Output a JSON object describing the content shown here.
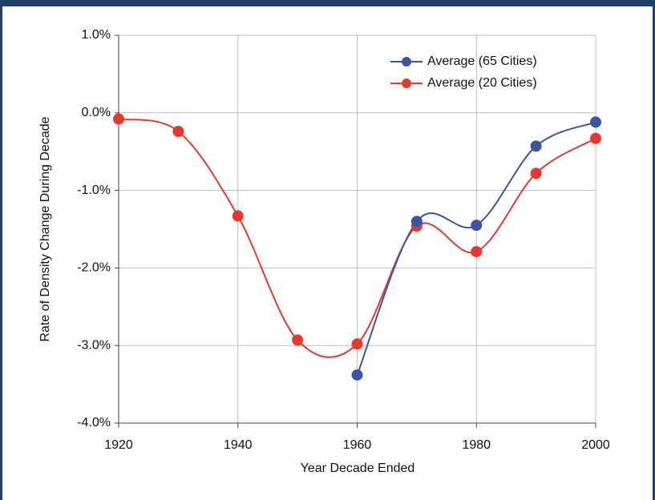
{
  "chart_data": {
    "type": "line",
    "x": [
      1920,
      1930,
      1940,
      1950,
      1960,
      1970,
      1980,
      1990,
      2000
    ],
    "series": [
      {
        "name": "Average (65 Cities)",
        "color": "#3a55a4",
        "values": [
          null,
          null,
          null,
          null,
          -3.38,
          -1.4,
          -1.45,
          -0.43,
          -0.12
        ]
      },
      {
        "name": "Average (20 Cities)",
        "color": "#e8382b",
        "values": [
          -0.08,
          -0.24,
          -1.33,
          -2.93,
          -2.98,
          -1.46,
          -1.79,
          -0.78,
          -0.33
        ]
      }
    ],
    "xlabel": "Year Decade Ended",
    "ylabel": "Rate of Density Change During Decade",
    "xlim": [
      1920,
      2000
    ],
    "xticks": [
      1920,
      1940,
      1960,
      1980,
      2000
    ],
    "ylim": [
      -4,
      1
    ],
    "yticks": [
      {
        "value": -4,
        "label": "-4.0%"
      },
      {
        "value": -3,
        "label": "-3.0%"
      },
      {
        "value": -2,
        "label": "-2.0%"
      },
      {
        "value": -1,
        "label": "-1.0%"
      },
      {
        "value": 0,
        "label": "0.0%"
      },
      {
        "value": 1,
        "label": "1.0%"
      }
    ],
    "grid": true,
    "smooth": true,
    "legend": "upper right"
  }
}
